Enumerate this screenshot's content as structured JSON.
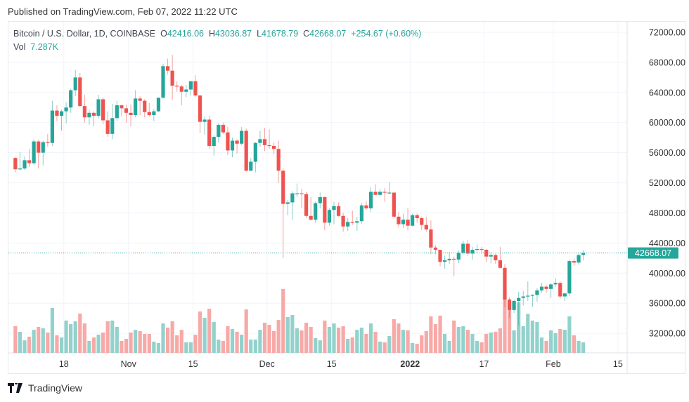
{
  "published": "Published on TradingView.com, Feb 07, 2022 11:22 UTC",
  "legend": {
    "symbol": "Bitcoin / U.S. Dollar, 1D, COINBASE",
    "o_label": "O",
    "o": "42416.06",
    "h_label": "H",
    "h": "43036.87",
    "l_label": "L",
    "l": "41678.79",
    "c_label": "C",
    "c": "42668.07",
    "change": "+254.67 (+0.60%)",
    "vol_label": "Vol",
    "vol": "7.287K"
  },
  "footer": {
    "brand": "TradingView",
    "logo_icon": "tradingview-logo-icon"
  },
  "colors": {
    "up": "#26a69a",
    "down": "#ef5350",
    "up_volume": "#92d2cc",
    "down_volume": "#f7a9a7",
    "grid": "#f0f3fa"
  },
  "chart_data": {
    "type": "candlestick",
    "title": "Bitcoin / U.S. Dollar, 1D, COINBASE",
    "ylim": [
      29400,
      73400
    ],
    "grid": true,
    "y_ticks": [
      72000,
      68000,
      64000,
      60000,
      56000,
      52000,
      48000,
      44000,
      40000,
      36000,
      32000
    ],
    "y_tick_labels": [
      "72000.00",
      "68000.00",
      "64000.00",
      "60000.00",
      "56000.00",
      "52000.00",
      "48000.00",
      "44000.00",
      "40000.00",
      "36000.00",
      "32000.00"
    ],
    "x_ticks": [
      {
        "date": "2021-10-18",
        "label": "18"
      },
      {
        "date": "2021-11-01",
        "label": "Nov"
      },
      {
        "date": "2021-11-15",
        "label": "15"
      },
      {
        "date": "2021-12-01",
        "label": "Dec"
      },
      {
        "date": "2021-12-15",
        "label": "15"
      },
      {
        "date": "2022-01-01",
        "label": "2022"
      },
      {
        "date": "2022-01-17",
        "label": "17"
      },
      {
        "date": "2022-02-01",
        "label": "Feb"
      },
      {
        "date": "2022-02-15",
        "label": "15"
      }
    ],
    "x_range": [
      "2021-10-06",
      "2022-02-17"
    ],
    "last_price": 42668.07,
    "last_price_label": "42668.07",
    "columns": [
      "date",
      "open",
      "high",
      "low",
      "close",
      "volume"
    ],
    "candles": [
      [
        "2021-10-07",
        55300,
        55400,
        53400,
        53800,
        18500
      ],
      [
        "2021-10-08",
        53800,
        56100,
        53600,
        53900,
        14600
      ],
      [
        "2021-10-09",
        53900,
        55500,
        53700,
        55000,
        8700
      ],
      [
        "2021-10-10",
        55000,
        56500,
        54100,
        54600,
        11200
      ],
      [
        "2021-10-11",
        54600,
        57800,
        54400,
        57500,
        16000
      ],
      [
        "2021-10-12",
        57500,
        57700,
        53900,
        56000,
        18000
      ],
      [
        "2021-10-13",
        56000,
        57600,
        54300,
        57400,
        17000
      ],
      [
        "2021-10-14",
        57400,
        58500,
        56800,
        57300,
        14100
      ],
      [
        "2021-10-15",
        57300,
        62900,
        56900,
        61600,
        31100
      ],
      [
        "2021-10-16",
        61600,
        62300,
        60200,
        60900,
        12200
      ],
      [
        "2021-10-17",
        60900,
        61700,
        58900,
        61500,
        10700
      ],
      [
        "2021-10-18",
        61500,
        62700,
        59900,
        62000,
        22400
      ],
      [
        "2021-10-19",
        62000,
        64500,
        61300,
        64300,
        19900
      ],
      [
        "2021-10-20",
        64300,
        67000,
        63500,
        66000,
        21900
      ],
      [
        "2021-10-21",
        66000,
        66600,
        62100,
        62200,
        27200
      ],
      [
        "2021-10-22",
        62200,
        63700,
        60000,
        60700,
        20400
      ],
      [
        "2021-10-23",
        60700,
        61700,
        59700,
        61300,
        8300
      ],
      [
        "2021-10-24",
        61300,
        61500,
        59500,
        60900,
        10700
      ],
      [
        "2021-10-25",
        60900,
        63700,
        60600,
        63100,
        12600
      ],
      [
        "2021-10-26",
        63100,
        63300,
        59800,
        60300,
        14100
      ],
      [
        "2021-10-27",
        60300,
        61500,
        58100,
        58500,
        21900
      ],
      [
        "2021-10-28",
        58500,
        62500,
        57800,
        60600,
        22400
      ],
      [
        "2021-10-29",
        60600,
        62900,
        60200,
        62300,
        18000
      ],
      [
        "2021-10-30",
        62300,
        62400,
        60800,
        61900,
        8300
      ],
      [
        "2021-10-31",
        61900,
        62400,
        60000,
        61300,
        9700
      ],
      [
        "2021-11-01",
        61300,
        62400,
        59500,
        61000,
        14100
      ],
      [
        "2021-11-02",
        61000,
        64300,
        60700,
        63200,
        16000
      ],
      [
        "2021-11-03",
        63200,
        63500,
        61000,
        62900,
        15100
      ],
      [
        "2021-11-04",
        62900,
        63100,
        60700,
        61400,
        13100
      ],
      [
        "2021-11-05",
        61400,
        62600,
        60800,
        61000,
        13100
      ],
      [
        "2021-11-06",
        61000,
        61800,
        60200,
        61500,
        7800
      ],
      [
        "2021-11-07",
        61500,
        63300,
        61400,
        63300,
        6800
      ],
      [
        "2021-11-08",
        63300,
        67800,
        63200,
        67500,
        20400
      ],
      [
        "2021-11-09",
        67500,
        68500,
        66400,
        66900,
        17500
      ],
      [
        "2021-11-10",
        66900,
        69000,
        63000,
        64900,
        21900
      ],
      [
        "2021-11-11",
        64900,
        65500,
        64100,
        64800,
        12200
      ],
      [
        "2021-11-12",
        64800,
        65000,
        62300,
        64100,
        16000
      ],
      [
        "2021-11-13",
        64100,
        65000,
        63400,
        64400,
        7300
      ],
      [
        "2021-11-14",
        64400,
        65500,
        63600,
        65500,
        7300
      ],
      [
        "2021-11-15",
        65500,
        66300,
        63400,
        63600,
        12600
      ],
      [
        "2021-11-16",
        63600,
        63600,
        58600,
        60100,
        28700
      ],
      [
        "2021-11-17",
        60100,
        60800,
        58400,
        60400,
        24300
      ],
      [
        "2021-11-18",
        60400,
        60900,
        56500,
        56900,
        30600
      ],
      [
        "2021-11-19",
        56900,
        58300,
        55600,
        58100,
        21400
      ],
      [
        "2021-11-20",
        58100,
        59900,
        57400,
        59700,
        9200
      ],
      [
        "2021-11-21",
        59700,
        60000,
        58500,
        58700,
        8300
      ],
      [
        "2021-11-22",
        58700,
        59400,
        55700,
        56300,
        18500
      ],
      [
        "2021-11-23",
        56300,
        58000,
        55400,
        57600,
        16500
      ],
      [
        "2021-11-24",
        57600,
        57800,
        55900,
        57200,
        14600
      ],
      [
        "2021-11-25",
        57200,
        59400,
        57000,
        58900,
        12600
      ],
      [
        "2021-11-26",
        58900,
        59200,
        53500,
        53600,
        30100
      ],
      [
        "2021-11-27",
        53600,
        55300,
        53600,
        54800,
        9200
      ],
      [
        "2021-11-28",
        54800,
        57400,
        53400,
        57300,
        9200
      ],
      [
        "2021-11-29",
        57300,
        58900,
        56800,
        57800,
        16000
      ],
      [
        "2021-11-30",
        57800,
        59300,
        56200,
        57000,
        20900
      ],
      [
        "2021-12-01",
        57000,
        59100,
        56500,
        56900,
        19400
      ],
      [
        "2021-12-02",
        56900,
        57400,
        55800,
        56500,
        15100
      ],
      [
        "2021-12-03",
        56500,
        57600,
        52000,
        53600,
        22800
      ],
      [
        "2021-12-04",
        53600,
        53900,
        42000,
        49200,
        44200
      ],
      [
        "2021-12-05",
        49200,
        49700,
        47700,
        49400,
        24800
      ],
      [
        "2021-12-06",
        49400,
        50900,
        47100,
        50600,
        26200
      ],
      [
        "2021-12-07",
        50600,
        51900,
        50100,
        50600,
        17000
      ],
      [
        "2021-12-08",
        50600,
        51200,
        48600,
        50500,
        15600
      ],
      [
        "2021-12-09",
        50500,
        50800,
        47300,
        47600,
        20900
      ],
      [
        "2021-12-10",
        47600,
        50100,
        47000,
        47100,
        18000
      ],
      [
        "2021-12-11",
        47100,
        49500,
        46700,
        49300,
        10200
      ],
      [
        "2021-12-12",
        49300,
        50700,
        48600,
        50100,
        8700
      ],
      [
        "2021-12-13",
        50100,
        50200,
        45700,
        46700,
        22400
      ],
      [
        "2021-12-14",
        46700,
        48600,
        46300,
        48400,
        18000
      ],
      [
        "2021-12-15",
        48400,
        49500,
        46500,
        48900,
        20400
      ],
      [
        "2021-12-16",
        48900,
        49400,
        47500,
        47600,
        17500
      ],
      [
        "2021-12-17",
        47600,
        48000,
        45500,
        46200,
        18500
      ],
      [
        "2021-12-18",
        46200,
        47300,
        45600,
        46800,
        9700
      ],
      [
        "2021-12-19",
        46800,
        48300,
        46400,
        46700,
        10700
      ],
      [
        "2021-12-20",
        46700,
        47500,
        45600,
        46900,
        16000
      ],
      [
        "2021-12-21",
        46900,
        49300,
        46600,
        49000,
        17500
      ],
      [
        "2021-12-22",
        49000,
        49600,
        48400,
        48600,
        13100
      ],
      [
        "2021-12-23",
        48600,
        51400,
        48100,
        50800,
        20400
      ],
      [
        "2021-12-24",
        50800,
        51800,
        50400,
        50400,
        14600
      ],
      [
        "2021-12-25",
        50400,
        51200,
        50200,
        50800,
        7800
      ],
      [
        "2021-12-26",
        50800,
        51300,
        49500,
        50700,
        7300
      ],
      [
        "2021-12-27",
        50700,
        52100,
        50500,
        50700,
        11700
      ],
      [
        "2021-12-28",
        50700,
        50700,
        47300,
        47500,
        23300
      ],
      [
        "2021-12-29",
        47500,
        48100,
        46100,
        46500,
        20400
      ],
      [
        "2021-12-30",
        46500,
        47900,
        46000,
        47100,
        16000
      ],
      [
        "2021-12-31",
        47100,
        48600,
        45700,
        46300,
        15600
      ],
      [
        "2022-01-01",
        46300,
        47900,
        46200,
        47700,
        6800
      ],
      [
        "2022-01-02",
        47700,
        47900,
        46700,
        47300,
        6300
      ],
      [
        "2022-01-03",
        47300,
        47500,
        45700,
        46400,
        12200
      ],
      [
        "2022-01-04",
        46400,
        47500,
        45500,
        45800,
        15100
      ],
      [
        "2022-01-05",
        45800,
        47000,
        42500,
        43400,
        25300
      ],
      [
        "2022-01-06",
        43400,
        43700,
        42500,
        43100,
        19900
      ],
      [
        "2022-01-07",
        43100,
        43100,
        40900,
        41500,
        25800
      ],
      [
        "2022-01-08",
        41500,
        42300,
        40600,
        41700,
        13100
      ],
      [
        "2022-01-09",
        41700,
        42800,
        41200,
        41900,
        8300
      ],
      [
        "2022-01-10",
        41900,
        42200,
        39600,
        41800,
        22400
      ],
      [
        "2022-01-11",
        41800,
        43000,
        41300,
        42700,
        18000
      ],
      [
        "2022-01-12",
        42700,
        44300,
        42500,
        43900,
        18500
      ],
      [
        "2022-01-13",
        43900,
        44400,
        42300,
        42600,
        16000
      ],
      [
        "2022-01-14",
        42600,
        43500,
        41800,
        43100,
        13100
      ],
      [
        "2022-01-15",
        43100,
        43800,
        42600,
        43200,
        8300
      ],
      [
        "2022-01-16",
        43200,
        43500,
        42600,
        43100,
        7300
      ],
      [
        "2022-01-17",
        43100,
        43200,
        41500,
        42200,
        13100
      ],
      [
        "2022-01-18",
        42200,
        42700,
        41300,
        42400,
        14100
      ],
      [
        "2022-01-19",
        42400,
        42600,
        41200,
        41700,
        14600
      ],
      [
        "2022-01-20",
        41700,
        43500,
        40600,
        40700,
        17000
      ],
      [
        "2022-01-21",
        40700,
        41200,
        35500,
        36500,
        38000
      ],
      [
        "2022-01-22",
        36500,
        36800,
        34000,
        35100,
        34000
      ],
      [
        "2022-01-23",
        35100,
        36500,
        34700,
        36300,
        15600
      ],
      [
        "2022-01-24",
        36300,
        37500,
        33000,
        36700,
        35000
      ],
      [
        "2022-01-25",
        36700,
        37600,
        35700,
        36900,
        18500
      ],
      [
        "2022-01-26",
        36900,
        38900,
        36300,
        37000,
        27000
      ],
      [
        "2022-01-27",
        37000,
        37200,
        35500,
        37100,
        22400
      ],
      [
        "2022-01-28",
        37100,
        38000,
        36200,
        37700,
        21400
      ],
      [
        "2022-01-29",
        37700,
        38700,
        37400,
        38200,
        10700
      ],
      [
        "2022-01-30",
        38200,
        38400,
        37400,
        37900,
        8300
      ],
      [
        "2022-01-31",
        37900,
        38700,
        36700,
        38500,
        15600
      ],
      [
        "2022-02-01",
        38500,
        39300,
        38200,
        38700,
        13600
      ],
      [
        "2022-02-02",
        38700,
        38900,
        36600,
        36900,
        16500
      ],
      [
        "2022-02-03",
        36900,
        37400,
        36300,
        37300,
        16000
      ],
      [
        "2022-02-04",
        37300,
        41800,
        37000,
        41600,
        25300
      ],
      [
        "2022-02-05",
        41600,
        41900,
        41000,
        41400,
        12200
      ],
      [
        "2022-02-06",
        41400,
        42600,
        41100,
        42400,
        8300
      ],
      [
        "2022-02-07",
        42416.06,
        43036.87,
        41678.79,
        42668.07,
        7287
      ]
    ]
  }
}
